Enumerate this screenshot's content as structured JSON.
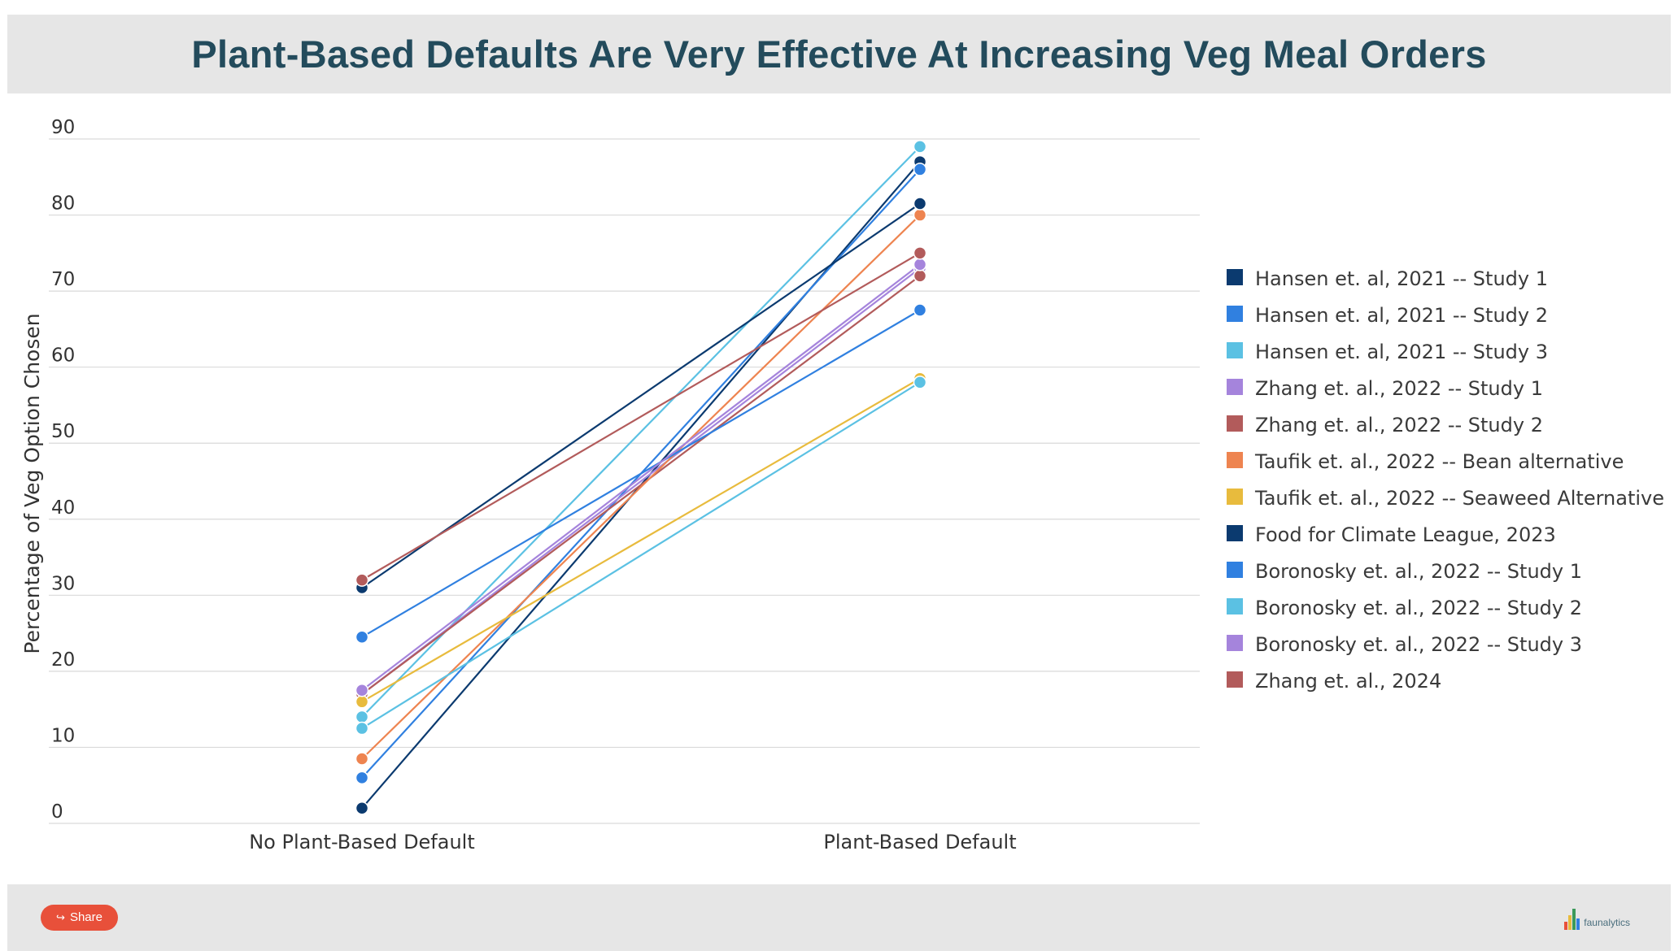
{
  "chart_data": {
    "type": "line",
    "title": "Plant-Based Defaults Are Very Effective At Increasing Veg Meal Orders",
    "xlabel": "",
    "ylabel": "Percentage of Veg Option Chosen",
    "categories": [
      "No Plant-Based Default",
      "Plant-Based Default"
    ],
    "ylim": [
      0,
      90
    ],
    "yticks": [
      0,
      10,
      20,
      30,
      40,
      50,
      60,
      70,
      80,
      90
    ],
    "grid": true,
    "legend_position": "right",
    "series": [
      {
        "name": "Hansen et. al, 2021 -- Study 1",
        "color": "#0b3a6f",
        "values": [
          2,
          87
        ]
      },
      {
        "name": "Hansen et. al, 2021 -- Study 2",
        "color": "#3080e0",
        "values": [
          6,
          86
        ]
      },
      {
        "name": "Hansen et. al, 2021 -- Study 3",
        "color": "#5bc1e3",
        "values": [
          14,
          89
        ]
      },
      {
        "name": "Zhang et. al., 2022 -- Study 1",
        "color": "#a584dc",
        "values": [
          17,
          73
        ]
      },
      {
        "name": "Zhang et. al., 2022 -- Study 2",
        "color": "#b25b5b",
        "values": [
          17,
          72
        ]
      },
      {
        "name": "Taufik et. al., 2022 -- Bean alternative",
        "color": "#ee8450",
        "values": [
          8.5,
          80
        ]
      },
      {
        "name": "Taufik et. al., 2022 -- Seaweed Alternative",
        "color": "#e8bb3d",
        "values": [
          16,
          58.5
        ]
      },
      {
        "name": "Food for Climate League, 2023",
        "color": "#0b3a6f",
        "values": [
          31,
          81.5
        ]
      },
      {
        "name": "Boronosky et. al., 2022 -- Study 1",
        "color": "#3080e0",
        "values": [
          24.5,
          67.5
        ]
      },
      {
        "name": "Boronosky et. al., 2022 -- Study 2",
        "color": "#5bc1e3",
        "values": [
          12.5,
          58
        ]
      },
      {
        "name": "Boronosky et. al., 2022 -- Study 3",
        "color": "#a584dc",
        "values": [
          17.5,
          73.5
        ]
      },
      {
        "name": "Zhang et. al., 2024",
        "color": "#b25b5b",
        "values": [
          32,
          75
        ]
      }
    ]
  },
  "footer": {
    "share_label": "Share",
    "share_icon": "share-icon",
    "logo_text": "faunalytics",
    "logo_colors": [
      "#e8503a",
      "#e8bb3d",
      "#3b9a5a",
      "#3080e0"
    ]
  }
}
